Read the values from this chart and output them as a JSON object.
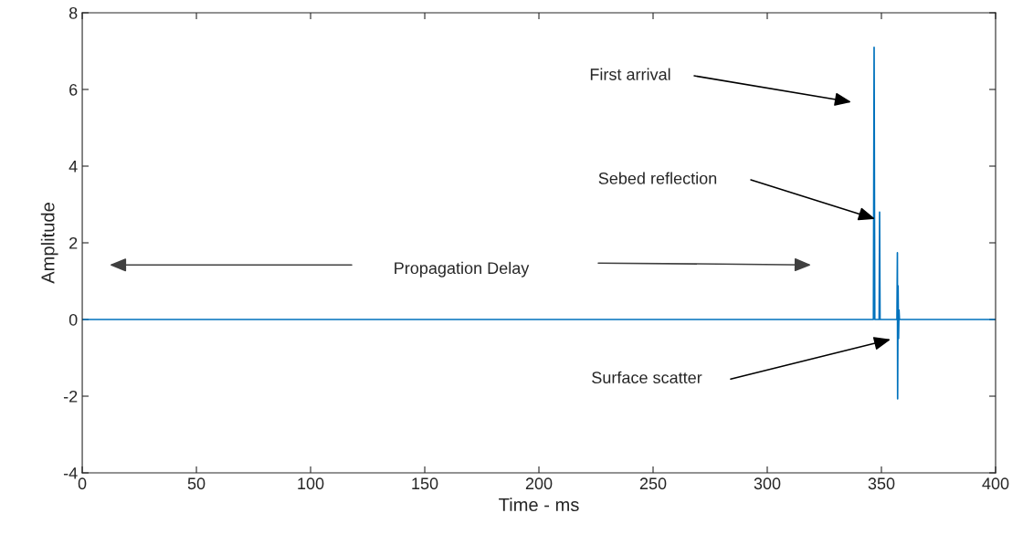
{
  "chart_data": {
    "type": "line",
    "xlabel": "Time - ms",
    "ylabel": "Amplitude",
    "x": [
      0,
      346.5,
      346.8,
      347.1,
      349.0,
      349.2,
      349.4,
      356.8,
      357.0,
      357.1,
      357.3,
      357.5,
      357.7,
      357.9,
      400
    ],
    "series": [
      {
        "color": "#0072bd",
        "values": [
          0,
          0,
          7.1,
          0,
          0,
          2.8,
          0,
          0,
          1.74,
          -2.07,
          0.88,
          -0.5,
          0.25,
          0,
          0
        ]
      }
    ],
    "xlim": [
      0,
      400
    ],
    "xticks": [
      0,
      50,
      100,
      150,
      200,
      250,
      300,
      350,
      400
    ],
    "ylim": [
      -4,
      8
    ],
    "yticks": [
      -4,
      -2,
      0,
      2,
      4,
      6,
      8
    ],
    "grid": false,
    "legend": false,
    "marker": "none",
    "line_style": "solid",
    "annotations": [
      "First arrival",
      "Sebed reflection",
      "Propagation Delay",
      "Surface scatter"
    ]
  }
}
